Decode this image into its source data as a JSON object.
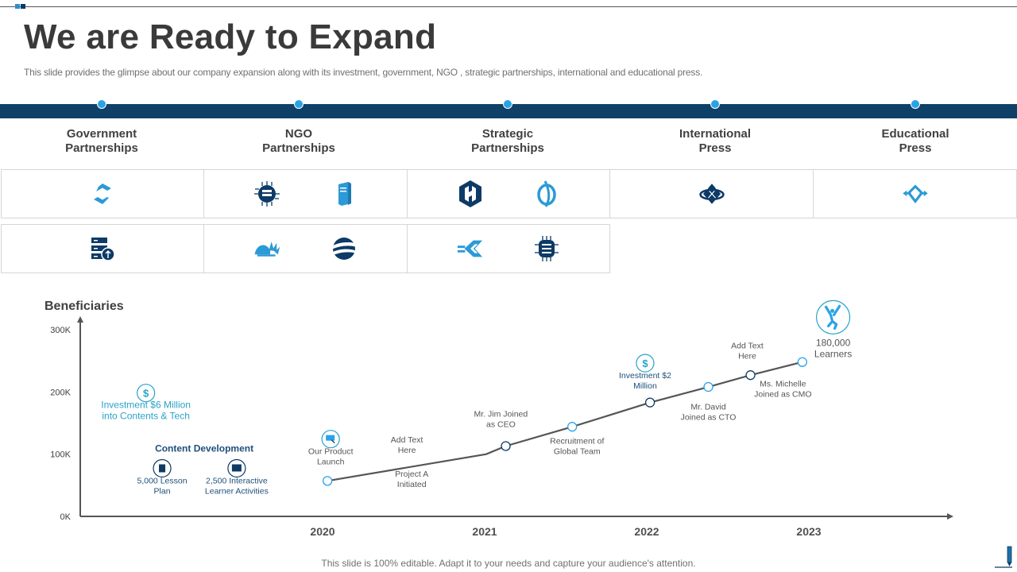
{
  "slide": {
    "title": "We are Ready to Expand",
    "subtitle": "This slide provides the glimpse about our company expansion along with its investment, government, NGO ,  strategic partnerships, international and educational press.",
    "footer": "This slide is 100% editable. Adapt it to your needs and capture your audience's attention.",
    "colors": {
      "band": "#0e4068",
      "accent": "#29a3e8",
      "navy": "#0d3a66",
      "text": "#404040"
    }
  },
  "categories": [
    {
      "label_line1": "Government",
      "label_line2": "Partnerships",
      "icons_row1": [
        "hexagon-s-logo-icon"
      ],
      "icons_row2": [
        "server-upload-icon"
      ]
    },
    {
      "label_line1": "NGO",
      "label_line2": "Partnerships",
      "icons_row1": [
        "circuit-chip-icon",
        "server-tower-icon"
      ],
      "icons_row2": [
        "lotus-book-icon",
        "swoosh-globe-icon"
      ]
    },
    {
      "label_line1": "Strategic",
      "label_line2": "Partnerships",
      "icons_row1": [
        "hexagon-h-logo-icon",
        "ring-leaf-icon"
      ],
      "icons_row2": [
        "merge-arrows-icon",
        "circuit-chip-icon"
      ]
    },
    {
      "label_line1": "International",
      "label_line2": "Press",
      "icons_row1": [
        "diamond-cluster-icon"
      ],
      "icons_row2": []
    },
    {
      "label_line1": "Educational",
      "label_line2": "Press",
      "icons_row1": [
        "diamond-arrows-icon"
      ],
      "icons_row2": []
    }
  ],
  "chart_data": {
    "type": "line",
    "title": "Beneficiaries",
    "xlabel": "",
    "ylabel": "Beneficiaries",
    "x_ticks": [
      "2020",
      "2021",
      "2022",
      "2023"
    ],
    "y_ticks": [
      "0K",
      "100K",
      "200K",
      "300K"
    ],
    "ylim": [
      0,
      300000
    ],
    "xlim": [
      2018.5,
      2023.9
    ],
    "grid": false,
    "series": [
      {
        "name": "Beneficiaries",
        "points": [
          {
            "x": 2020.03,
            "y": 57000,
            "marker": true
          },
          {
            "x": 2021.01,
            "y": 100000,
            "marker": false
          },
          {
            "x": 2021.13,
            "y": 113000,
            "marker": true
          },
          {
            "x": 2021.54,
            "y": 144000,
            "marker": true
          },
          {
            "x": 2022.02,
            "y": 183000,
            "marker": true
          },
          {
            "x": 2022.38,
            "y": 208000,
            "marker": true
          },
          {
            "x": 2022.64,
            "y": 227000,
            "marker": true
          },
          {
            "x": 2022.96,
            "y": 248000,
            "marker": true
          }
        ]
      }
    ],
    "annotations": [
      {
        "text": [
          "Our Product",
          "Launch"
        ],
        "x": 2020.05,
        "y": 100000,
        "icon": "presentation-icon",
        "style": "gray"
      },
      {
        "text": [
          "Add Text",
          "Here"
        ],
        "x": 2020.52,
        "y": 119000,
        "style": "gray"
      },
      {
        "text": [
          "Project A",
          "Initiated"
        ],
        "x": 2020.55,
        "y": 64000,
        "style": "gray"
      },
      {
        "text": [
          "Mr. Jim Joined",
          "as CEO"
        ],
        "x": 2021.1,
        "y": 160000,
        "style": "gray"
      },
      {
        "text": [
          "Recruitment of",
          "Global Team"
        ],
        "x": 2021.57,
        "y": 117000,
        "style": "gray"
      },
      {
        "text": [
          "Investment $2",
          "Million"
        ],
        "x": 2021.99,
        "y": 222000,
        "icon": "dollar-icon",
        "style": "navy"
      },
      {
        "text": [
          "Mr. David",
          "Joined as CTO"
        ],
        "x": 2022.38,
        "y": 172000,
        "style": "gray"
      },
      {
        "text": [
          "Add Text",
          "Here"
        ],
        "x": 2022.62,
        "y": 270000,
        "style": "gray"
      },
      {
        "text": [
          "Ms. Michelle",
          "Joined as CMO"
        ],
        "x": 2022.84,
        "y": 209000,
        "style": "gray"
      },
      {
        "text": [
          "180,000",
          "Learners"
        ],
        "x": 2023.15,
        "y": 274000,
        "icon": "jumping-person-icon",
        "style": "large"
      },
      {
        "text": [
          "Investment $6 Million",
          "into Contents & Tech"
        ],
        "x": 2018.91,
        "y": 174000,
        "icon": "dollar-icon",
        "style": "cyan"
      },
      {
        "text": [
          "Content  Development"
        ],
        "x": 2019.27,
        "y": 104000,
        "style": "heading"
      },
      {
        "text": [
          "5,000 Lesson",
          "Plan"
        ],
        "x": 2019.01,
        "y": 53000,
        "icon": "document-icon",
        "style": "navy"
      },
      {
        "text": [
          "2,500 Interactive",
          "Learner Activities"
        ],
        "x": 2019.47,
        "y": 53000,
        "icon": "interactive-board-icon",
        "style": "navy"
      }
    ]
  }
}
